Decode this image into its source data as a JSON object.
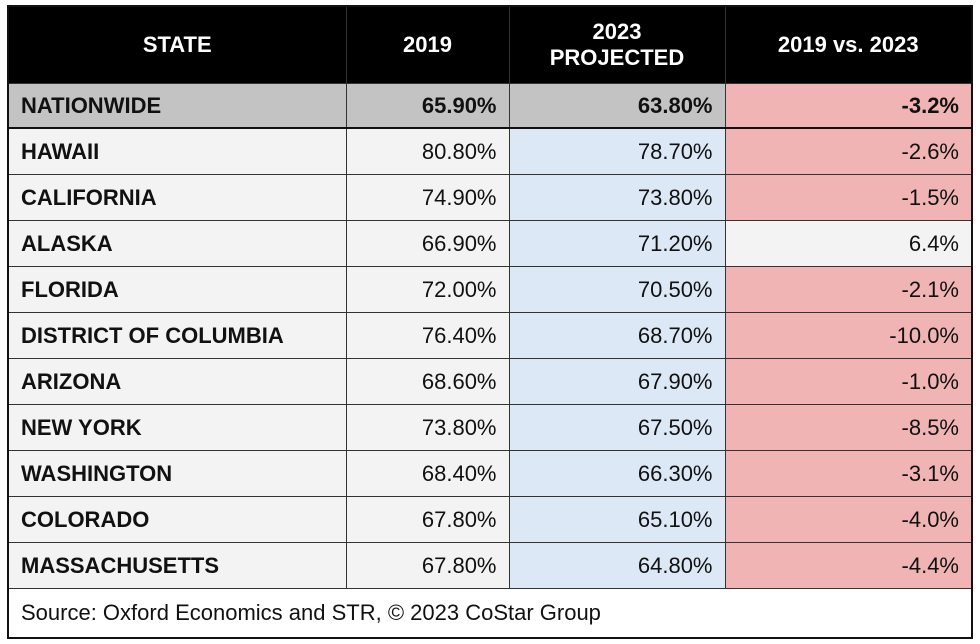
{
  "table": {
    "header": [
      "STATE",
      "2019",
      "2023\nPROJECTED",
      "2019 vs. 2023"
    ],
    "rows": [
      [
        "NATIONWIDE",
        "65.90%",
        "63.80%",
        "-3.2%"
      ],
      [
        "HAWAII",
        "80.80%",
        "78.70%",
        "-2.6%"
      ],
      [
        "CALIFORNIA",
        "74.90%",
        "73.80%",
        "-1.5%"
      ],
      [
        "ALASKA",
        "66.90%",
        "71.20%",
        "6.4%"
      ],
      [
        "FLORIDA",
        "72.00%",
        "70.50%",
        "-2.1%"
      ],
      [
        "DISTRICT OF COLUMBIA",
        "76.40%",
        "68.70%",
        "-10.0%"
      ],
      [
        "ARIZONA",
        "68.60%",
        "67.90%",
        "-1.0%"
      ],
      [
        "NEW YORK",
        "73.80%",
        "67.50%",
        "-8.5%"
      ],
      [
        "WASHINGTON",
        "68.40%",
        "66.30%",
        "-3.1%"
      ],
      [
        "COLORADO",
        "67.80%",
        "65.10%",
        "-4.0%"
      ],
      [
        "MASSACHUSETTS",
        "67.80%",
        "64.80%",
        "-4.4%"
      ]
    ],
    "source": "Source: Oxford Economics and STR, © 2023 CoStar Group"
  }
}
